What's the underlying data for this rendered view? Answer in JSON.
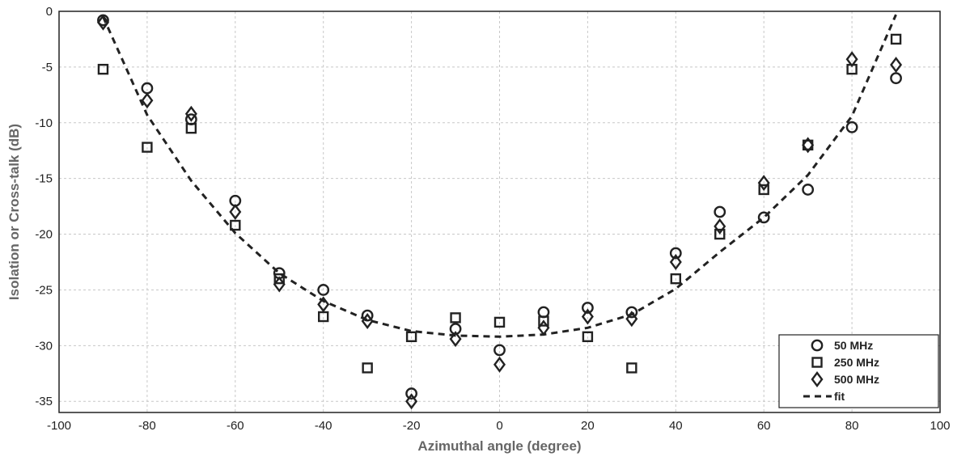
{
  "chart_data": {
    "type": "scatter",
    "title": "",
    "xlabel": "Azimuthal angle (degree)",
    "ylabel": "Isolation or Cross-talk (dB)",
    "xlim": [
      -100,
      100
    ],
    "ylim": [
      -36,
      0
    ],
    "xticks": [
      -100,
      -80,
      -60,
      -40,
      -20,
      0,
      20,
      40,
      60,
      80,
      100
    ],
    "yticks": [
      0,
      -5,
      -10,
      -15,
      -20,
      -25,
      -30,
      -35
    ],
    "grid": true,
    "legend_position": "bottom-right",
    "series": [
      {
        "name": "50 MHz",
        "marker": "circle",
        "x": [
          -90,
          -80,
          -70,
          -60,
          -50,
          -40,
          -30,
          -20,
          -10,
          0,
          10,
          20,
          30,
          40,
          50,
          60,
          70,
          80,
          90
        ],
        "y": [
          -0.8,
          -6.9,
          -9.7,
          -17.0,
          -23.5,
          -25.0,
          -27.3,
          -34.3,
          -28.5,
          -30.4,
          -27.0,
          -26.6,
          -27.0,
          -21.7,
          -18.0,
          -18.5,
          -16.0,
          -10.4,
          -6.0
        ]
      },
      {
        "name": "250 MHz",
        "marker": "square",
        "x": [
          -90,
          -80,
          -70,
          -60,
          -50,
          -40,
          -30,
          -20,
          -10,
          0,
          10,
          20,
          30,
          40,
          50,
          60,
          70,
          80,
          90
        ],
        "y": [
          -5.2,
          -12.2,
          -10.5,
          -19.2,
          -24.0,
          -27.4,
          -32.0,
          -29.2,
          -27.5,
          -27.9,
          -27.8,
          -29.2,
          -32.0,
          -24.0,
          -20.0,
          -16.0,
          -12.0,
          -5.2,
          -2.5
        ]
      },
      {
        "name": "500 MHz",
        "marker": "diamond",
        "x": [
          -90,
          -80,
          -70,
          -60,
          -50,
          -40,
          -30,
          -20,
          -10,
          0,
          10,
          20,
          30,
          40,
          50,
          60,
          70,
          80,
          90
        ],
        "y": [
          -1.0,
          -8.0,
          -9.2,
          -18.0,
          -24.5,
          -26.3,
          -27.8,
          -35.0,
          -29.4,
          -31.7,
          -28.4,
          -27.4,
          -27.6,
          -22.5,
          -19.3,
          -15.4,
          -12.0,
          -4.3,
          -4.8
        ]
      }
    ],
    "fit": {
      "name": "fit",
      "x": [
        -90,
        -80,
        -70,
        -60,
        -50,
        -40,
        -30,
        -20,
        -10,
        0,
        10,
        20,
        30,
        40,
        50,
        60,
        70,
        80,
        90
      ],
      "y": [
        -0.5,
        -9.3,
        -15.2,
        -19.9,
        -23.5,
        -26.0,
        -27.7,
        -28.7,
        -29.1,
        -29.2,
        -29.0,
        -28.4,
        -27.2,
        -24.9,
        -21.6,
        -18.5,
        -14.7,
        -9.4,
        -0.3
      ]
    },
    "colors": {
      "ink": "#222222",
      "grid": "#c8c8c8",
      "axis_title": "#666666"
    }
  }
}
